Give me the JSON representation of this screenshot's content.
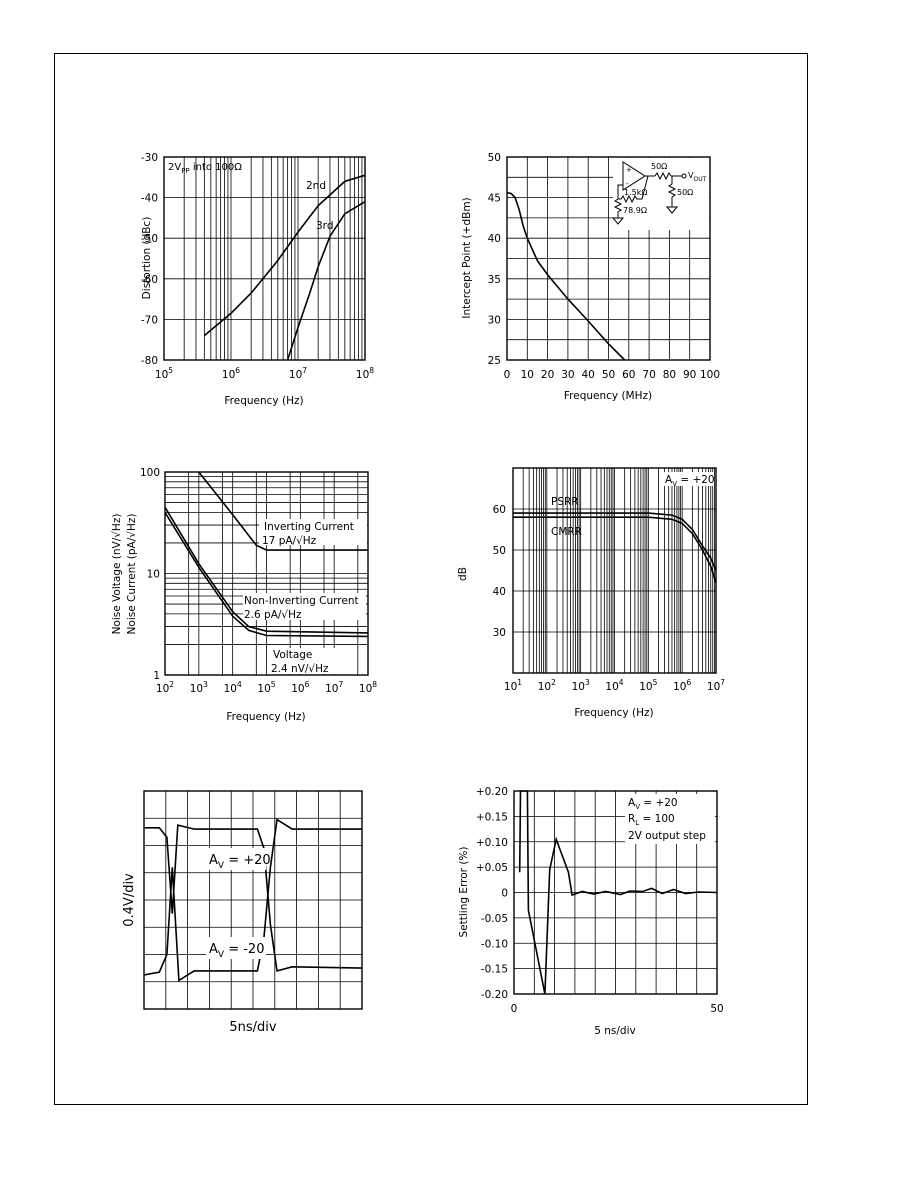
{
  "chart_data": [
    {
      "id": "distortion",
      "type": "line",
      "title": "",
      "xlabel": "Frequency (Hz)",
      "ylabel": "Distortion (dBc)",
      "xscale": "log",
      "xlim": [
        100000,
        100000000
      ],
      "ylim": [
        -80,
        -30
      ],
      "grid": true,
      "x_tick_labels": [
        "10^5",
        "10^6",
        "10^7",
        "10^8"
      ],
      "y_tick_labels": [
        "-30",
        "-40",
        "-50",
        "-60",
        "-70",
        "-80"
      ],
      "annotations": [
        {
          "text": "2V",
          "sub": "PP",
          "rest": " into 100Ω"
        }
      ],
      "series": [
        {
          "name": "2nd",
          "x": [
            400000,
            1000000,
            2000000,
            5000000,
            10000000,
            20000000,
            50000000,
            100000000
          ],
          "y": [
            -74,
            -68.5,
            -63.5,
            -55.5,
            -48.5,
            -42,
            -36,
            -34.5
          ]
        },
        {
          "name": "3rd",
          "x": [
            7000000,
            10000000,
            15000000,
            20000000,
            30000000,
            50000000,
            100000000
          ],
          "y": [
            -80,
            -72,
            -63.5,
            -57,
            -49.5,
            -44,
            -41
          ]
        }
      ]
    },
    {
      "id": "intercept",
      "type": "line",
      "title": "",
      "xlabel": "Frequency (MHz)",
      "ylabel": "Intercept Point (+dBm)",
      "xlim": [
        0,
        100
      ],
      "ylim": [
        25,
        50
      ],
      "grid": true,
      "x_ticks": [
        0,
        10,
        20,
        30,
        40,
        50,
        60,
        70,
        80,
        90,
        100
      ],
      "y_ticks": [
        25,
        30,
        35,
        40,
        45,
        50
      ],
      "inset_labels": {
        "r_series": "50Ω",
        "r_load": "50Ω",
        "r_feedback": "1.5kΩ",
        "r_gain": "78.9Ω",
        "vout": "V",
        "vout_sub": "OUT"
      },
      "series": [
        {
          "name": "",
          "x": [
            0,
            2,
            4,
            6,
            8,
            10,
            15,
            20,
            30,
            40,
            50,
            58
          ],
          "y": [
            45.6,
            45.5,
            45,
            43.5,
            41.5,
            40,
            37.2,
            35.5,
            32.5,
            29.8,
            27,
            25
          ]
        }
      ]
    },
    {
      "id": "noise",
      "type": "line",
      "title": "",
      "xlabel": "Frequency (Hz)",
      "ylabel_lines": [
        "Noise Voltage (nV/√Hz)",
        "Noise Current (pA/√Hz)"
      ],
      "xscale": "log",
      "yscale": "log",
      "xlim": [
        100,
        100000000
      ],
      "ylim": [
        1,
        100
      ],
      "grid": true,
      "x_tick_labels": [
        "10^2",
        "10^3",
        "10^4",
        "10^5",
        "10^6",
        "10^7",
        "10^8"
      ],
      "y_tick_labels": [
        "100",
        "10",
        "1"
      ],
      "annotations": [
        {
          "line1": "Inverting Current",
          "line2": "17 pA/√Hz"
        },
        {
          "line1": "Non-Inverting Current",
          "line2": "2.6 pA/√Hz"
        },
        {
          "line1": "Voltage",
          "line2": "2.4 nV/√Hz"
        }
      ],
      "series": [
        {
          "name": "Inverting Current",
          "x": [
            1000,
            10000,
            50000,
            100000,
            100000000
          ],
          "y": [
            100,
            38,
            19,
            17,
            17
          ]
        },
        {
          "name": "Non-Inverting Current",
          "x": [
            100,
            1000,
            10000,
            30000,
            100000,
            100000000
          ],
          "y": [
            45,
            12.5,
            4.2,
            3,
            2.7,
            2.6
          ]
        },
        {
          "name": "Voltage",
          "x": [
            100,
            1000,
            10000,
            30000,
            100000,
            100000000
          ],
          "y": [
            40,
            11.5,
            3.8,
            2.75,
            2.45,
            2.4
          ]
        }
      ]
    },
    {
      "id": "psrr_cmrr",
      "type": "line",
      "title": "",
      "xlabel": "Frequency (Hz)",
      "ylabel": "dB",
      "xscale": "log",
      "xlim": [
        10,
        10000000
      ],
      "ylim": [
        20,
        70
      ],
      "grid": true,
      "x_tick_labels": [
        "10^1",
        "10^2",
        "10^3",
        "10^4",
        "10^5",
        "10^6",
        "10^7"
      ],
      "y_ticks": [
        30,
        40,
        50,
        60
      ],
      "annotations": [
        {
          "text": "A",
          "sub": "V",
          "rest": " = +20"
        }
      ],
      "series": [
        {
          "name": "PSRR",
          "x": [
            10,
            100000,
            500000,
            1000000,
            2000000,
            4000000,
            7000000,
            10000000
          ],
          "y": [
            59,
            59,
            58.5,
            57.5,
            55,
            51,
            48,
            45
          ]
        },
        {
          "name": "CMRR",
          "x": [
            10,
            100000,
            500000,
            1000000,
            2000000,
            4000000,
            7000000,
            10000000
          ],
          "y": [
            58,
            58,
            57.5,
            56.5,
            54,
            50,
            46,
            42
          ]
        }
      ]
    },
    {
      "id": "pulse",
      "type": "line",
      "title": "",
      "xlabel": "5ns/div",
      "ylabel": "0.4V/div",
      "xlim": [
        0,
        10
      ],
      "ylim": [
        -4,
        4
      ],
      "grid": true,
      "annotations": [
        {
          "text": "A",
          "sub": "V",
          "rest": " = +20"
        },
        {
          "text": "A",
          "sub": "V",
          "rest": " = -20"
        }
      ],
      "series": [
        {
          "name": "A_V = +20",
          "x": [
            0,
            0.7,
            1.05,
            1.3,
            1.55,
            2.3,
            5.2,
            5.5,
            5.8,
            6.1,
            6.8,
            10
          ],
          "y": [
            2.65,
            2.65,
            2.3,
            -0.5,
            2.75,
            2.6,
            2.6,
            1.9,
            -0.9,
            -2.6,
            -2.45,
            -2.5
          ]
        },
        {
          "name": "A_V = -20",
          "x": [
            0,
            0.7,
            1.05,
            1.3,
            1.6,
            2.3,
            5.2,
            5.5,
            5.8,
            6.1,
            6.8,
            10
          ],
          "y": [
            -2.75,
            -2.65,
            -2.0,
            1.2,
            -2.95,
            -2.6,
            -2.6,
            -1.4,
            1.2,
            2.95,
            2.6,
            2.6
          ]
        }
      ]
    },
    {
      "id": "settling",
      "type": "line",
      "title": "",
      "xlabel": "5 ns/div",
      "ylabel": "Settling Error (%)",
      "xlim": [
        0,
        50
      ],
      "ylim": [
        -0.2,
        0.2
      ],
      "grid": true,
      "x_tick_labels": [
        "0",
        "50"
      ],
      "y_tick_labels": [
        "+0.20",
        "+0.15",
        "+0.10",
        "+0.05",
        "0",
        "-0.05",
        "-0.10",
        "-0.15",
        "-0.20"
      ],
      "annotations": [
        {
          "text": "A",
          "sub": "V",
          "rest": " = +20"
        },
        {
          "text": "R",
          "sub": "L",
          "rest": " = 100"
        },
        {
          "text": "2V output step",
          "sub": "",
          "rest": ""
        }
      ],
      "series": [
        {
          "name": "",
          "x": [
            1.4,
            1.6,
            3.3,
            3.55,
            7.6,
            8.8,
            10.4,
            13.4,
            14.3,
            16.8,
            19.6,
            22.6,
            26.2,
            28.6,
            31.7,
            33.9,
            36.5,
            39.3,
            42.3,
            45.4,
            50
          ],
          "y": [
            0.04,
            0.2,
            0.2,
            -0.035,
            -0.2,
            0.045,
            0.105,
            0.04,
            -0.005,
            0.002,
            -0.003,
            0.002,
            -0.004,
            0.003,
            0.002,
            0.008,
            -0.002,
            0.006,
            -0.002,
            0.001,
            0.0
          ]
        }
      ]
    }
  ]
}
